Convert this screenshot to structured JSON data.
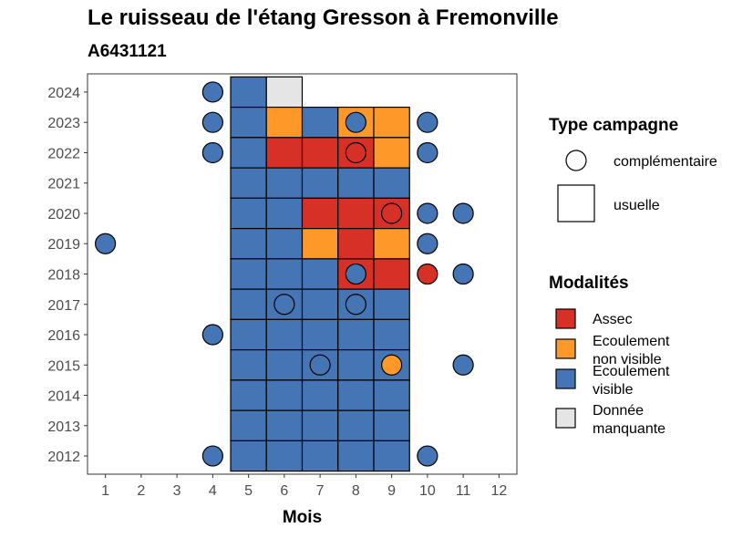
{
  "title": "Le ruisseau de l'étang Gresson à Fremonville",
  "subtitle": "A6431121",
  "chart_data": {
    "type": "heatmap",
    "xlabel": "Mois",
    "x_ticks": [
      "1",
      "2",
      "3",
      "4",
      "5",
      "6",
      "7",
      "8",
      "9",
      "10",
      "11",
      "12"
    ],
    "y_ticks": [
      "2012",
      "2013",
      "2014",
      "2015",
      "2016",
      "2017",
      "2018",
      "2019",
      "2020",
      "2021",
      "2022",
      "2023",
      "2024"
    ],
    "xlim": [
      0.5,
      12.5
    ],
    "ylim": [
      2011.4,
      2024.6
    ],
    "colors": {
      "Assec": "#d73027",
      "Ecoulement non visible": "#fe9929",
      "Ecoulement visible": "#4575b4",
      "Donnée manquante": "#e5e5e5"
    },
    "usuelle": [
      {
        "year": 2024,
        "month": 5,
        "state": "Ecoulement visible"
      },
      {
        "year": 2024,
        "month": 6,
        "state": "Donnée manquante"
      },
      {
        "year": 2023,
        "month": 5,
        "state": "Ecoulement visible"
      },
      {
        "year": 2023,
        "month": 6,
        "state": "Ecoulement non visible"
      },
      {
        "year": 2023,
        "month": 7,
        "state": "Ecoulement visible"
      },
      {
        "year": 2023,
        "month": 8,
        "state": "Ecoulement non visible"
      },
      {
        "year": 2023,
        "month": 9,
        "state": "Ecoulement non visible"
      },
      {
        "year": 2022,
        "month": 5,
        "state": "Ecoulement visible"
      },
      {
        "year": 2022,
        "month": 6,
        "state": "Assec"
      },
      {
        "year": 2022,
        "month": 7,
        "state": "Assec"
      },
      {
        "year": 2022,
        "month": 8,
        "state": "Assec"
      },
      {
        "year": 2022,
        "month": 9,
        "state": "Ecoulement non visible"
      },
      {
        "year": 2021,
        "month": 5,
        "state": "Ecoulement visible"
      },
      {
        "year": 2021,
        "month": 6,
        "state": "Ecoulement visible"
      },
      {
        "year": 2021,
        "month": 7,
        "state": "Ecoulement visible"
      },
      {
        "year": 2021,
        "month": 8,
        "state": "Ecoulement visible"
      },
      {
        "year": 2021,
        "month": 9,
        "state": "Ecoulement visible"
      },
      {
        "year": 2020,
        "month": 5,
        "state": "Ecoulement visible"
      },
      {
        "year": 2020,
        "month": 6,
        "state": "Ecoulement visible"
      },
      {
        "year": 2020,
        "month": 7,
        "state": "Assec"
      },
      {
        "year": 2020,
        "month": 8,
        "state": "Assec"
      },
      {
        "year": 2020,
        "month": 9,
        "state": "Assec"
      },
      {
        "year": 2019,
        "month": 5,
        "state": "Ecoulement visible"
      },
      {
        "year": 2019,
        "month": 6,
        "state": "Ecoulement visible"
      },
      {
        "year": 2019,
        "month": 7,
        "state": "Ecoulement non visible"
      },
      {
        "year": 2019,
        "month": 8,
        "state": "Assec"
      },
      {
        "year": 2019,
        "month": 9,
        "state": "Ecoulement non visible"
      },
      {
        "year": 2018,
        "month": 5,
        "state": "Ecoulement visible"
      },
      {
        "year": 2018,
        "month": 6,
        "state": "Ecoulement visible"
      },
      {
        "year": 2018,
        "month": 7,
        "state": "Ecoulement visible"
      },
      {
        "year": 2018,
        "month": 8,
        "state": "Assec"
      },
      {
        "year": 2018,
        "month": 9,
        "state": "Assec"
      },
      {
        "year": 2017,
        "month": 5,
        "state": "Ecoulement visible"
      },
      {
        "year": 2017,
        "month": 6,
        "state": "Ecoulement visible"
      },
      {
        "year": 2017,
        "month": 7,
        "state": "Ecoulement visible"
      },
      {
        "year": 2017,
        "month": 8,
        "state": "Ecoulement visible"
      },
      {
        "year": 2017,
        "month": 9,
        "state": "Ecoulement visible"
      },
      {
        "year": 2016,
        "month": 5,
        "state": "Ecoulement visible"
      },
      {
        "year": 2016,
        "month": 6,
        "state": "Ecoulement visible"
      },
      {
        "year": 2016,
        "month": 7,
        "state": "Ecoulement visible"
      },
      {
        "year": 2016,
        "month": 8,
        "state": "Ecoulement visible"
      },
      {
        "year": 2016,
        "month": 9,
        "state": "Ecoulement visible"
      },
      {
        "year": 2015,
        "month": 5,
        "state": "Ecoulement visible"
      },
      {
        "year": 2015,
        "month": 6,
        "state": "Ecoulement visible"
      },
      {
        "year": 2015,
        "month": 7,
        "state": "Ecoulement visible"
      },
      {
        "year": 2015,
        "month": 8,
        "state": "Ecoulement visible"
      },
      {
        "year": 2015,
        "month": 9,
        "state": "Ecoulement visible"
      },
      {
        "year": 2014,
        "month": 5,
        "state": "Ecoulement visible"
      },
      {
        "year": 2014,
        "month": 6,
        "state": "Ecoulement visible"
      },
      {
        "year": 2014,
        "month": 7,
        "state": "Ecoulement visible"
      },
      {
        "year": 2014,
        "month": 8,
        "state": "Ecoulement visible"
      },
      {
        "year": 2014,
        "month": 9,
        "state": "Ecoulement visible"
      },
      {
        "year": 2013,
        "month": 5,
        "state": "Ecoulement visible"
      },
      {
        "year": 2013,
        "month": 6,
        "state": "Ecoulement visible"
      },
      {
        "year": 2013,
        "month": 7,
        "state": "Ecoulement visible"
      },
      {
        "year": 2013,
        "month": 8,
        "state": "Ecoulement visible"
      },
      {
        "year": 2013,
        "month": 9,
        "state": "Ecoulement visible"
      },
      {
        "year": 2012,
        "month": 5,
        "state": "Ecoulement visible"
      },
      {
        "year": 2012,
        "month": 6,
        "state": "Ecoulement visible"
      },
      {
        "year": 2012,
        "month": 7,
        "state": "Ecoulement visible"
      },
      {
        "year": 2012,
        "month": 8,
        "state": "Ecoulement visible"
      },
      {
        "year": 2012,
        "month": 9,
        "state": "Ecoulement visible"
      }
    ],
    "complementaire": [
      {
        "year": 2024,
        "month": 4,
        "state": "Ecoulement visible"
      },
      {
        "year": 2023,
        "month": 4,
        "state": "Ecoulement visible"
      },
      {
        "year": 2023,
        "month": 8,
        "state": "Ecoulement visible"
      },
      {
        "year": 2023,
        "month": 10,
        "state": "Ecoulement visible"
      },
      {
        "year": 2022,
        "month": 4,
        "state": "Ecoulement visible"
      },
      {
        "year": 2022,
        "month": 8,
        "state": "Assec"
      },
      {
        "year": 2022,
        "month": 10,
        "state": "Ecoulement visible"
      },
      {
        "year": 2020,
        "month": 9,
        "state": "Assec"
      },
      {
        "year": 2020,
        "month": 10,
        "state": "Ecoulement visible"
      },
      {
        "year": 2020,
        "month": 11,
        "state": "Ecoulement visible"
      },
      {
        "year": 2019,
        "month": 1,
        "state": "Ecoulement visible"
      },
      {
        "year": 2019,
        "month": 10,
        "state": "Ecoulement visible"
      },
      {
        "year": 2018,
        "month": 8,
        "state": "Ecoulement visible"
      },
      {
        "year": 2018,
        "month": 10,
        "state": "Assec"
      },
      {
        "year": 2018,
        "month": 11,
        "state": "Ecoulement visible"
      },
      {
        "year": 2017,
        "month": 6,
        "state": "Ecoulement visible"
      },
      {
        "year": 2017,
        "month": 8,
        "state": "Ecoulement visible"
      },
      {
        "year": 2016,
        "month": 4,
        "state": "Ecoulement visible"
      },
      {
        "year": 2015,
        "month": 7,
        "state": "Ecoulement visible"
      },
      {
        "year": 2015,
        "month": 9,
        "state": "Ecoulement non visible"
      },
      {
        "year": 2015,
        "month": 11,
        "state": "Ecoulement visible"
      },
      {
        "year": 2012,
        "month": 4,
        "state": "Ecoulement visible"
      },
      {
        "year": 2012,
        "month": 10,
        "state": "Ecoulement visible"
      }
    ],
    "legend_type": {
      "title": "Type campagne",
      "items": [
        "complémentaire",
        "usuelle"
      ]
    },
    "legend_modalites": {
      "title": "Modalités",
      "items": [
        {
          "key": "Assec",
          "lines": [
            "Assec"
          ]
        },
        {
          "key": "Ecoulement non visible",
          "lines": [
            "Ecoulement",
            "non visible"
          ]
        },
        {
          "key": "Ecoulement visible",
          "lines": [
            "Ecoulement",
            "visible"
          ]
        },
        {
          "key": "Donnée manquante",
          "lines": [
            "Donnée",
            "manquante"
          ]
        }
      ]
    },
    "legend_position": "right",
    "grid": false
  }
}
